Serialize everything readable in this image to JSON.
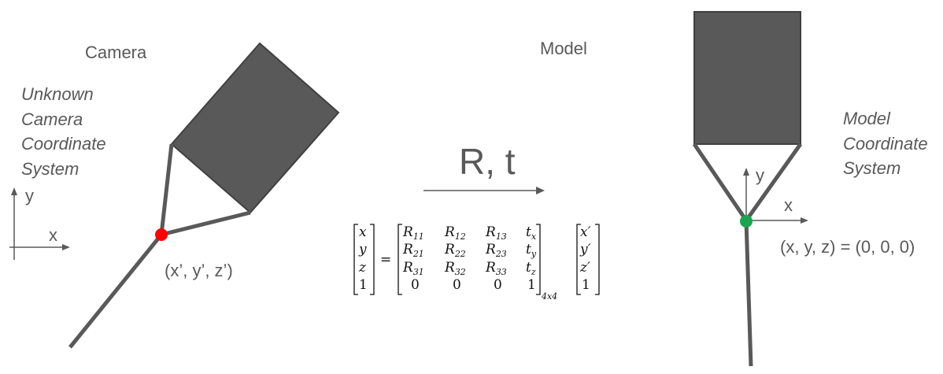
{
  "camera": {
    "title": "Camera",
    "desc_lines": [
      "Unknown",
      "Camera",
      "Coordinate",
      "System"
    ],
    "axis_x": "x",
    "axis_y": "y",
    "point_label": "(x’, y’, z’)"
  },
  "model": {
    "title": "Model",
    "desc_lines": [
      "Model",
      "Coordinate",
      "System"
    ],
    "axis_x": "x",
    "axis_y": "y",
    "point_label": "(x, y, z) = (0, 0, 0)"
  },
  "transform": {
    "label": "R, t",
    "equation": {
      "lhs": [
        "x",
        "y",
        "z",
        "1"
      ],
      "equals": "=",
      "matrix_rows": [
        [
          "R11",
          "R12",
          "R13",
          "tx"
        ],
        [
          "R21",
          "R22",
          "R23",
          "ty"
        ],
        [
          "R31",
          "R32",
          "R33",
          "tz"
        ],
        [
          "0",
          "0",
          "0",
          "1"
        ]
      ],
      "size_subscript": "4x4",
      "rhs": [
        "x′",
        "y′",
        "z′",
        "1"
      ]
    }
  },
  "colors": {
    "body": "#595959",
    "line": "#595959",
    "camera_point": "#ff0000",
    "model_point": "#1aa551"
  }
}
